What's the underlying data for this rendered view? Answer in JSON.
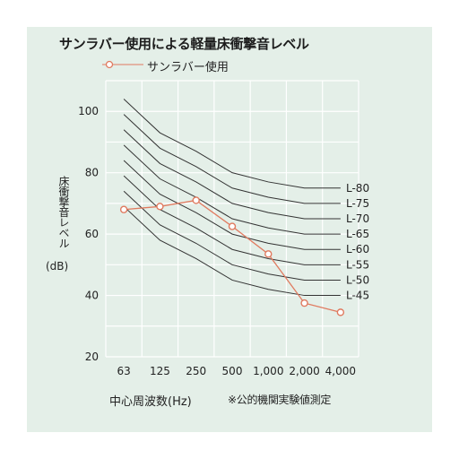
{
  "title": "サンラバー使用による軽量床衝撃音レベル",
  "legend_label": "サンラバー使用",
  "ylabel": "床衝撃音レベル",
  "yunit": "(dB)",
  "xlabel": "中心周波数(Hz)",
  "note": "※公的機関実験値測定",
  "colors": {
    "series": "#e07a5f",
    "grid": "#ffffff",
    "curves": "#333333",
    "background": "#e4efe8"
  },
  "chart_data": {
    "type": "line",
    "x": [
      "63",
      "125",
      "250",
      "500",
      "1,000",
      "2,000",
      "4,000"
    ],
    "ylim": [
      20,
      110
    ],
    "yticks": [
      20,
      40,
      60,
      80,
      100
    ],
    "grid": true,
    "legend_position": "top-left",
    "series": [
      {
        "name": "サンラバー使用",
        "values": [
          68,
          69,
          71,
          62.5,
          53.5,
          37.5,
          34.5
        ]
      }
    ],
    "reference_curves": [
      {
        "label": "L-80",
        "values": [
          104,
          93,
          87,
          80,
          77,
          75,
          75
        ]
      },
      {
        "label": "L-75",
        "values": [
          99,
          88,
          82,
          75,
          72,
          70,
          70
        ]
      },
      {
        "label": "L-70",
        "values": [
          94,
          83,
          77,
          70,
          67,
          65,
          65
        ]
      },
      {
        "label": "L-65",
        "values": [
          89,
          78,
          72,
          65,
          62,
          60,
          60
        ]
      },
      {
        "label": "L-60",
        "values": [
          84,
          73,
          67,
          60,
          57,
          55,
          55
        ]
      },
      {
        "label": "L-55",
        "values": [
          79,
          68,
          62,
          55,
          52,
          50,
          50
        ]
      },
      {
        "label": "L-50",
        "values": [
          74,
          63,
          57,
          50,
          47,
          45,
          45
        ]
      },
      {
        "label": "L-45",
        "values": [
          69,
          58,
          52,
          45,
          42,
          40,
          40
        ]
      }
    ]
  }
}
